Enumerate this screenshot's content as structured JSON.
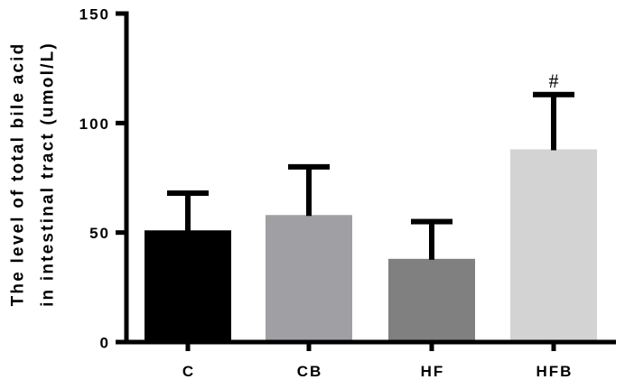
{
  "chart_data": {
    "type": "bar",
    "title": "",
    "xlabel": "",
    "ylabel": "The level of total bile acid in intestinal tract (umol/L)",
    "ylabel_lines": [
      "The level of total bile acid",
      "in intestinal tract (umol/L)"
    ],
    "ylim": [
      0,
      150
    ],
    "yticks": [
      0,
      50,
      100,
      150
    ],
    "ytick_labels": [
      "0",
      "50",
      "100",
      "150"
    ],
    "categories": [
      "C",
      "CB",
      "HF",
      "HFB"
    ],
    "values": [
      51,
      58,
      38,
      88
    ],
    "error_upper": [
      68,
      80,
      55,
      113
    ],
    "error_sd": [
      17,
      22,
      17,
      25
    ],
    "colors": [
      "#000000",
      "#a0a0a4",
      "#808080",
      "#d3d3d3"
    ],
    "annotations": [
      {
        "category": "HFB",
        "text": "#"
      }
    ],
    "grid": false,
    "legend": null
  }
}
